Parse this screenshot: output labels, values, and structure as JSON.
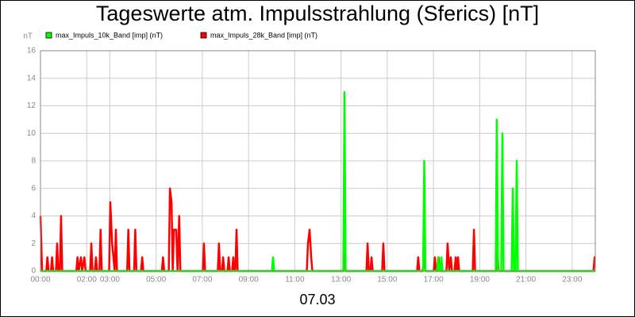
{
  "chart_data": {
    "type": "line",
    "title": "Tageswerte atm. Impulsstrahlung (Sferics) [nT]",
    "y_label": "nT",
    "x_label": "07.03",
    "xlim": [
      0,
      24
    ],
    "xticks": [
      {
        "value": 0,
        "label": "00:00"
      },
      {
        "value": 2,
        "label": "02:00"
      },
      {
        "value": 3,
        "label": "03:00"
      },
      {
        "value": 5,
        "label": "05:00"
      },
      {
        "value": 7,
        "label": "07:00"
      },
      {
        "value": 9,
        "label": "09:00"
      },
      {
        "value": 11,
        "label": "11:00"
      },
      {
        "value": 13,
        "label": "13:00"
      },
      {
        "value": 15,
        "label": "15:00"
      },
      {
        "value": 17,
        "label": "17:00"
      },
      {
        "value": 19,
        "label": "19:00"
      },
      {
        "value": 21,
        "label": "21:00"
      },
      {
        "value": 23,
        "label": "23:00"
      }
    ],
    "ylim": [
      0,
      16
    ],
    "yticks": [
      0,
      2,
      4,
      6,
      8,
      10,
      12,
      14,
      16
    ],
    "grid": true,
    "series": [
      {
        "name": "max_Impuls_28k_Band [imp] (nT)",
        "color": "#ff0000",
        "x": [
          0,
          0.07,
          0.25,
          0.3,
          0.35,
          0.45,
          0.5,
          0.55,
          0.67,
          0.72,
          0.77,
          0.84,
          0.89,
          0.94,
          1.55,
          1.6,
          1.65,
          1.75,
          1.8,
          1.9,
          1.95,
          2.15,
          2.2,
          2.25,
          2.35,
          2.4,
          2.45,
          2.55,
          2.6,
          2.65,
          2.97,
          3.02,
          3.1,
          3.21,
          3.26,
          3.31,
          3.75,
          3.8,
          3.85,
          4.05,
          4.1,
          4.15,
          4.35,
          4.4,
          4.45,
          5.25,
          5.3,
          5.35,
          5.55,
          5.6,
          5.67,
          5.72,
          5.77,
          5.87,
          5.93,
          6.0,
          6.05,
          7.02,
          7.07,
          7.12,
          7.67,
          7.72,
          7.77,
          7.85,
          7.9,
          7.95,
          8.09,
          8.14,
          8.19,
          8.29,
          8.34,
          8.39,
          8.43,
          8.48,
          8.53,
          11.52,
          11.57,
          11.64,
          11.71,
          11.76,
          13.1,
          13.15,
          13.2,
          14.1,
          14.15,
          14.2,
          14.27,
          14.32,
          14.37,
          14.78,
          14.83,
          14.88,
          16.29,
          16.34,
          16.39,
          16.53,
          16.6,
          16.65,
          17.01,
          17.06,
          17.11,
          17.17,
          17.22,
          17.27,
          17.56,
          17.61,
          17.68,
          17.75,
          17.8,
          17.91,
          17.96,
          18.01,
          18.06,
          18.11,
          18.7,
          18.75,
          18.8,
          19.71,
          19.76,
          19.81,
          23.92,
          23.97,
          24
        ],
        "values": [
          4,
          0,
          0,
          1,
          0,
          0,
          1,
          0,
          0,
          2,
          0,
          0,
          4,
          0,
          0,
          1,
          0,
          1,
          0,
          1,
          0,
          0,
          2,
          0,
          0,
          1,
          0,
          0,
          3,
          0,
          0,
          5,
          2,
          0,
          3,
          0,
          0,
          3,
          0,
          0,
          3,
          0,
          0,
          1,
          0,
          0,
          1,
          0,
          0,
          6,
          5,
          0,
          3,
          3,
          0,
          4,
          0,
          0,
          2,
          0,
          0,
          2,
          0,
          0,
          1,
          0,
          0,
          1,
          0,
          0,
          1,
          0,
          0,
          3,
          0,
          0,
          2,
          3,
          1,
          0,
          0,
          2,
          0,
          0,
          2,
          0,
          0,
          1,
          0,
          0,
          2,
          0,
          0,
          1,
          0,
          0,
          1,
          0,
          0,
          1,
          0,
          0,
          1,
          0,
          0,
          2,
          0,
          1,
          0,
          0,
          1,
          0,
          1,
          0,
          0,
          3,
          0,
          0,
          2,
          0,
          0,
          1,
          1
        ]
      },
      {
        "name": "max_Impuls_10k_Band [imp] (nT)",
        "color": "#00ff00",
        "x": [
          0,
          10.01,
          10.06,
          10.11,
          13.1,
          13.15,
          13.2,
          16.55,
          16.6,
          16.65,
          17.15,
          17.2,
          17.25,
          17.29,
          17.34,
          17.39,
          19.69,
          19.74,
          19.79,
          19.93,
          19.98,
          20.03,
          20.38,
          20.43,
          20.48,
          20.55,
          20.6,
          20.65,
          24
        ],
        "values": [
          0,
          0,
          1,
          0,
          0,
          13,
          0,
          0,
          8,
          0,
          0,
          1,
          0,
          0,
          1,
          0,
          0,
          11,
          0,
          0,
          10,
          0,
          0,
          6,
          0,
          0,
          8,
          0,
          0
        ]
      }
    ]
  }
}
